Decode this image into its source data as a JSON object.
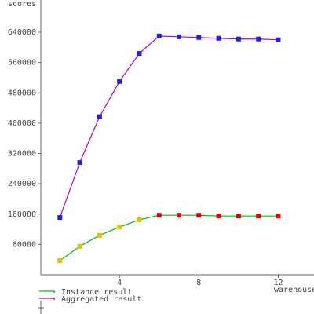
{
  "chart_data": {
    "type": "line",
    "y_label": "scores",
    "x_label": "warehouses",
    "x": [
      1,
      2,
      3,
      4,
      5,
      6,
      7,
      8,
      9,
      10,
      11,
      12
    ],
    "series": [
      {
        "name": "Instance result",
        "color": "#00c000",
        "marker_colors": [
          "#e0c000",
          "#e0c000",
          "#e0c000",
          "#e0c000",
          "#e0c000",
          "#e00000",
          "#e00000",
          "#e00000",
          "#e00000",
          "#e00000",
          "#e00000",
          "#e00000"
        ],
        "values": [
          37000,
          75000,
          104000,
          126000,
          145000,
          157000,
          157000,
          157000,
          155000,
          155000,
          155000,
          155000
        ]
      },
      {
        "name": "Aggregated result",
        "color": "#c000c0",
        "marker_colors": [
          "#2020e0",
          "#2020e0",
          "#2020e0",
          "#2020e0",
          "#2020e0",
          "#2020e0",
          "#2020e0",
          "#2020e0",
          "#2020e0",
          "#2020e0",
          "#2020e0",
          "#2020e0"
        ],
        "values": [
          151000,
          296000,
          417000,
          510000,
          584000,
          630000,
          628000,
          626000,
          624000,
          622000,
          622000,
          620000
        ]
      }
    ],
    "xlim": [
      0,
      13.8
    ],
    "ylim": [
      0,
      725000
    ],
    "xticks": [
      4,
      8,
      12
    ],
    "yticks": [
      80000,
      160000,
      240000,
      320000,
      400000,
      480000,
      560000,
      640000
    ]
  }
}
